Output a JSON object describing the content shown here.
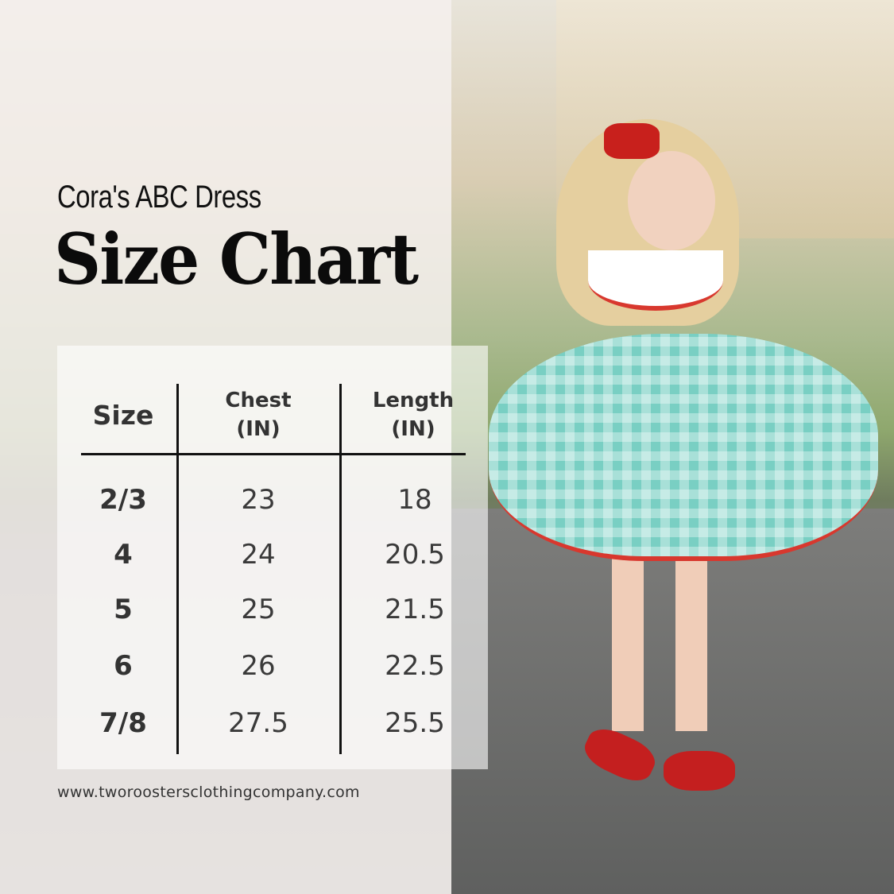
{
  "header": {
    "subtitle": "Cora's ABC Dress",
    "title": "Size Chart"
  },
  "table": {
    "columns": [
      {
        "label": "Size",
        "unit": ""
      },
      {
        "label": "Chest",
        "unit": "(IN)"
      },
      {
        "label": "Length",
        "unit": "(IN)"
      }
    ],
    "rows": [
      {
        "size": "2/3",
        "chest": "23",
        "length": "18"
      },
      {
        "size": "4",
        "chest": "24",
        "length": "20.5"
      },
      {
        "size": "5",
        "chest": "25",
        "length": "21.5"
      },
      {
        "size": "6",
        "chest": "26",
        "length": "22.5"
      },
      {
        "size": "7/8",
        "chest": "27.5",
        "length": "25.5"
      }
    ]
  },
  "footer": {
    "url": "www.tworoostersclothingcompany.com"
  },
  "colors": {
    "dress": "#79cfc3",
    "trim": "#d8382e",
    "text": "#111111"
  }
}
